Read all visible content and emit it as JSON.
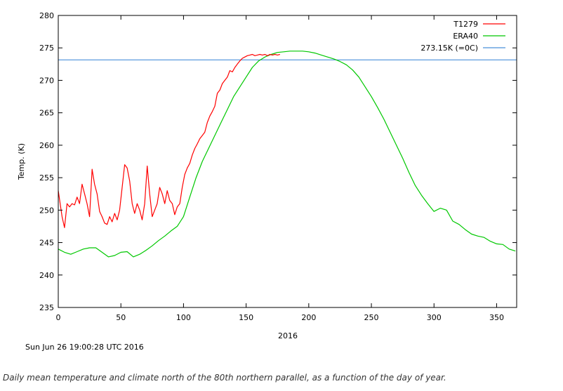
{
  "chart_data": {
    "type": "line",
    "xlabel": "2016",
    "ylabel": "Temp. (K)",
    "xlim": [
      0,
      366
    ],
    "ylim": [
      235,
      280
    ],
    "xticks": [
      0,
      50,
      100,
      150,
      200,
      250,
      300,
      350
    ],
    "yticks": [
      235,
      240,
      245,
      250,
      255,
      260,
      265,
      270,
      275,
      280
    ],
    "grid": false,
    "legend_position": "top-right",
    "series": [
      {
        "name": "T1279",
        "color": "#ff0000",
        "x": [
          0,
          3,
          5,
          7,
          9,
          11,
          13,
          15,
          17,
          19,
          21,
          23,
          25,
          27,
          29,
          31,
          33,
          35,
          37,
          39,
          41,
          43,
          45,
          47,
          49,
          51,
          53,
          55,
          57,
          59,
          61,
          63,
          65,
          67,
          69,
          71,
          73,
          75,
          77,
          79,
          81,
          83,
          85,
          87,
          89,
          91,
          93,
          95,
          97,
          99,
          101,
          103,
          105,
          107,
          109,
          111,
          113,
          115,
          117,
          119,
          121,
          123,
          125,
          127,
          129,
          131,
          133,
          135,
          137,
          139,
          141,
          143,
          145,
          147,
          149,
          151,
          153,
          155,
          157,
          159,
          161,
          163,
          165,
          167,
          169,
          171,
          173,
          175,
          177
        ],
        "y": [
          253,
          249,
          247.3,
          251,
          250.5,
          251,
          250.8,
          252,
          251,
          254,
          252.5,
          251,
          249,
          256.3,
          254,
          252.5,
          249.8,
          249,
          248,
          247.8,
          249,
          248.2,
          249.5,
          248.5,
          250,
          253.5,
          257,
          256.5,
          254.5,
          251,
          249.5,
          251,
          250,
          248.5,
          251,
          256.8,
          252.5,
          249,
          250,
          251,
          253.5,
          252.5,
          251,
          253,
          251.5,
          251,
          249.3,
          250.5,
          251,
          253.5,
          255.5,
          256.5,
          257.2,
          258.5,
          259.5,
          260.2,
          261,
          261.5,
          262,
          263.5,
          264.5,
          265.2,
          266,
          268,
          268.5,
          269.5,
          270,
          270.5,
          271.5,
          271.3,
          272,
          272.5,
          273,
          273.4,
          273.6,
          273.8,
          273.9,
          274,
          273.8,
          273.9,
          274,
          273.9,
          274,
          273.8,
          274,
          273.9,
          274,
          273.9,
          274
        ]
      },
      {
        "name": "ERA40",
        "color": "#00c800",
        "x": [
          0,
          5,
          10,
          15,
          20,
          25,
          30,
          35,
          40,
          45,
          50,
          55,
          60,
          65,
          70,
          75,
          80,
          85,
          90,
          95,
          100,
          105,
          110,
          115,
          120,
          125,
          130,
          135,
          140,
          145,
          150,
          155,
          160,
          165,
          170,
          175,
          180,
          185,
          190,
          195,
          200,
          205,
          210,
          215,
          220,
          225,
          230,
          235,
          240,
          245,
          250,
          255,
          260,
          265,
          270,
          275,
          280,
          285,
          290,
          295,
          300,
          305,
          310,
          315,
          320,
          325,
          330,
          335,
          340,
          345,
          350,
          355,
          360,
          365
        ],
        "y": [
          244,
          243.5,
          243.2,
          243.6,
          244,
          244.2,
          244.2,
          243.5,
          242.8,
          243,
          243.5,
          243.6,
          242.8,
          243.2,
          243.8,
          244.5,
          245.3,
          246,
          246.8,
          247.5,
          249,
          252,
          255,
          257.5,
          259.5,
          261.5,
          263.5,
          265.5,
          267.5,
          269,
          270.5,
          272,
          273,
          273.6,
          274,
          274.3,
          274.4,
          274.5,
          274.5,
          274.5,
          274.4,
          274.2,
          273.9,
          273.6,
          273.3,
          272.9,
          272.4,
          271.6,
          270.5,
          269,
          267.5,
          265.8,
          264,
          262,
          260,
          258,
          255.8,
          253.8,
          252.3,
          251,
          249.8,
          250.3,
          250,
          248.3,
          247.8,
          247,
          246.3,
          246,
          245.8,
          245.2,
          244.8,
          244.7,
          244,
          243.7
        ]
      },
      {
        "name": "273.15K (=0C)",
        "color": "#4a90d9",
        "x": [
          0,
          366
        ],
        "y": [
          273.15,
          273.15
        ]
      }
    ]
  },
  "timestamp": "Sun Jun 26 19:00:28 UTC 2016",
  "caption": "Daily mean temperature and climate north of the 80th northern parallel, as a function of the day of year."
}
